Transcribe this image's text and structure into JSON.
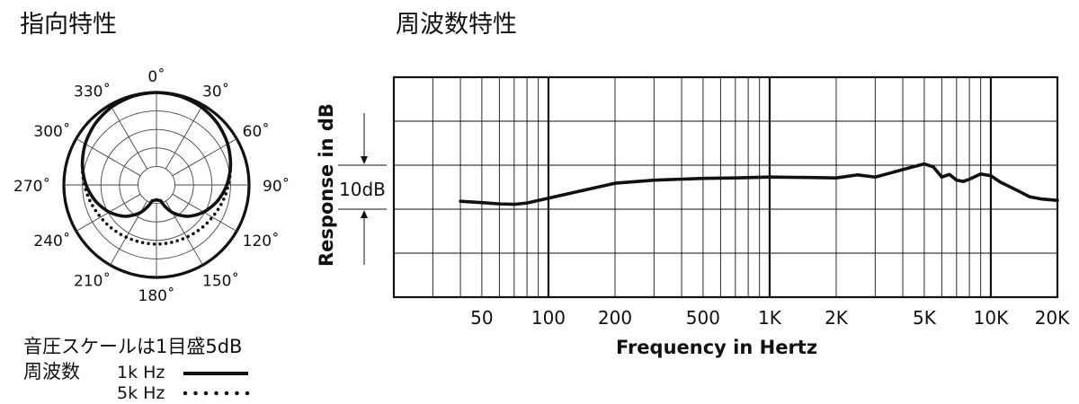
{
  "polar": {
    "title": "指向特性",
    "angle_labels": [
      "0˚",
      "30˚",
      "60˚",
      "90˚",
      "120˚",
      "150˚",
      "180˚",
      "210˚",
      "240˚",
      "270˚",
      "300˚",
      "330˚"
    ],
    "scale_note": "音圧スケールは1目盛5dB",
    "legend_title": "周波数",
    "legend": [
      {
        "label": "1k Hz",
        "style": "solid"
      },
      {
        "label": "5k Hz",
        "style": "dotted"
      }
    ]
  },
  "frequency": {
    "title": "周波数特性",
    "ylabel": "Response in dB",
    "xlabel": "Frequency in Hertz",
    "scale_label": "10dB",
    "tick_labels": [
      "50",
      "100",
      "200",
      "500",
      "1K",
      "2K",
      "5K",
      "10K",
      "20K"
    ]
  },
  "chart_data": [
    {
      "type": "polar",
      "title": "指向特性",
      "angle_unit": "degrees",
      "radial_step_db": 5,
      "radial_rings": 5,
      "series": [
        {
          "name": "1k Hz",
          "style": "solid",
          "angles": [
            0,
            15,
            30,
            45,
            60,
            75,
            90,
            105,
            120,
            135,
            150,
            165,
            180,
            195,
            210,
            225,
            240,
            255,
            270,
            285,
            300,
            315,
            330,
            345,
            360
          ],
          "db": [
            0,
            -0.2,
            -0.7,
            -1.6,
            -2.8,
            -4.3,
            -6.0,
            -8.0,
            -10.3,
            -13.0,
            -16.4,
            -20.6,
            -21.0,
            -20.6,
            -16.4,
            -13.0,
            -10.3,
            -8.0,
            -6.0,
            -4.3,
            -2.8,
            -1.6,
            -0.7,
            -0.2,
            0
          ]
        },
        {
          "name": "5k Hz",
          "style": "dotted",
          "angles": [
            75,
            90,
            100,
            110,
            120,
            130,
            140,
            150,
            160,
            170,
            180,
            190,
            200,
            210,
            220,
            230,
            240,
            250,
            260,
            270,
            285
          ],
          "db": [
            -4.3,
            -5.6,
            -6.3,
            -7.0,
            -7.6,
            -8.0,
            -8.4,
            -8.7,
            -8.9,
            -9.0,
            -9.0,
            -9.0,
            -8.9,
            -8.7,
            -8.4,
            -8.0,
            -7.6,
            -7.0,
            -6.3,
            -5.6,
            -4.3
          ]
        }
      ]
    },
    {
      "type": "line",
      "title": "周波数特性",
      "xlabel": "Frequency in Hertz",
      "ylabel": "Response in dB",
      "x_scale": "log",
      "xlim": [
        20,
        20000
      ],
      "ylim": [
        -25,
        25
      ],
      "y_grid_step": 5,
      "x_ticks": [
        50,
        100,
        200,
        500,
        1000,
        2000,
        5000,
        10000,
        20000
      ],
      "x_tick_labels": [
        "50",
        "100",
        "200",
        "500",
        "1K",
        "2K",
        "5K",
        "10K",
        "20K"
      ],
      "series": [
        {
          "x": [
            40,
            50,
            60,
            70,
            80,
            100,
            150,
            200,
            300,
            500,
            700,
            1000,
            1500,
            2000,
            2500,
            3000,
            3500,
            4000,
            5000,
            5500,
            6000,
            6500,
            7000,
            7500,
            8000,
            9000,
            10000,
            11000,
            13000,
            15000,
            17000,
            20000
          ],
          "y": [
            -3.2,
            -3.5,
            -3.8,
            -3.9,
            -3.6,
            -2.5,
            -0.5,
            0.9,
            1.6,
            2.0,
            2.1,
            2.3,
            2.2,
            2.1,
            2.8,
            2.3,
            3.2,
            4.0,
            5.3,
            4.6,
            2.3,
            2.9,
            1.6,
            1.3,
            1.8,
            3.0,
            2.6,
            1.2,
            -0.6,
            -2.2,
            -2.7,
            -3.0
          ]
        }
      ]
    }
  ]
}
